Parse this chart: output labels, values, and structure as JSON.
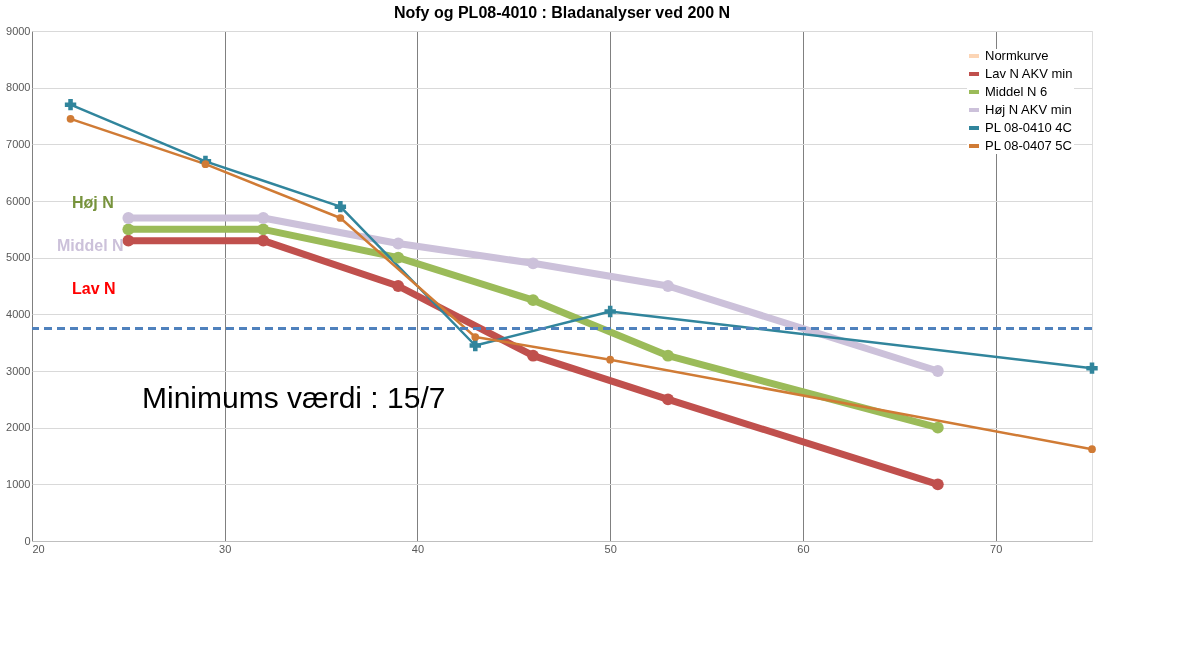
{
  "chart_data": {
    "type": "line",
    "title": "Nofy og PL08-4010 : Bladanalyser ved 200 N",
    "series": [
      {
        "name": "Normkurve",
        "color": "#fcd5b5"
      },
      {
        "name": "Lav N AKV min",
        "color": "#c0504d",
        "marker": "circle",
        "x": [
          25,
          32,
          39,
          46,
          53,
          67
        ],
        "values": [
          5300,
          5300,
          4500,
          3270,
          2500,
          1000
        ]
      },
      {
        "name": "Middel N 6",
        "color": "#9bbb59",
        "marker": "circle",
        "x": [
          25,
          32,
          39,
          46,
          53,
          67
        ],
        "values": [
          5500,
          5500,
          5000,
          4250,
          3270,
          2000
        ]
      },
      {
        "name": "Høj N AKV min",
        "color": "#ccc1da",
        "marker": "circle",
        "x": [
          25,
          32,
          39,
          46,
          53,
          67
        ],
        "values": [
          5700,
          5700,
          5250,
          4900,
          4500,
          3000
        ]
      },
      {
        "name": "PL 08-0410 4C",
        "color": "#31859c",
        "marker": "cross",
        "x": [
          22,
          29,
          36,
          43,
          50,
          75
        ],
        "values": [
          7700,
          6700,
          5900,
          3450,
          4050,
          3050
        ]
      },
      {
        "name": "PL 08-0407 5C",
        "color": "#d07b35",
        "marker": "circle",
        "x": [
          22,
          29,
          36,
          43,
          50,
          75
        ],
        "values": [
          7450,
          6650,
          5700,
          3600,
          3200,
          1620
        ]
      }
    ],
    "xlim": [
      20,
      75
    ],
    "xticks": [
      20,
      30,
      40,
      50,
      60,
      70
    ],
    "ylim": [
      0,
      9000
    ],
    "yticks": [
      0,
      1000,
      2000,
      3000,
      4000,
      5000,
      6000,
      7000,
      8000,
      9000
    ],
    "ref_lines": [
      {
        "axis": "y",
        "value": 3750,
        "color": "#4f81bd",
        "line_style": "dashed"
      }
    ],
    "annotations": [
      "Høj N",
      "Middel N",
      "Lav N",
      "Minimums værdi : 15/7"
    ],
    "grid": true,
    "legend": "top right",
    "line_style": "solid"
  }
}
